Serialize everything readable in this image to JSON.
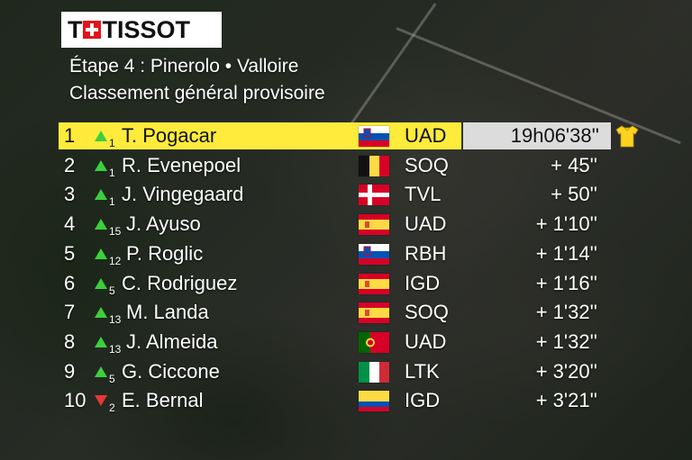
{
  "brand": {
    "logo_initial": "T",
    "logo_word": "TISSOT"
  },
  "header": {
    "stage": "Étape 4 : Pinerolo •  Valloire",
    "subtitle": "Classement général provisoire"
  },
  "colors": {
    "leader_bar": "#ffeb3b",
    "time_bar": "#dcdcdc",
    "up_arrow": "#3ccf3c",
    "down_arrow": "#e53935"
  },
  "standings": [
    {
      "rank": "1",
      "move": "up",
      "delta": "1",
      "rider": "T. Pogacar",
      "flag": "slovenia-flag",
      "team": "UAD",
      "time": "19h06'38''",
      "leader": true,
      "jersey": "yellow-jersey-icon"
    },
    {
      "rank": "2",
      "move": "up",
      "delta": "1",
      "rider": "R. Evenepoel",
      "flag": "belgium-flag",
      "team": "SOQ",
      "time": "+ 45''"
    },
    {
      "rank": "3",
      "move": "up",
      "delta": "1",
      "rider": "J. Vingegaard",
      "flag": "denmark-flag",
      "team": "TVL",
      "time": "+ 50''"
    },
    {
      "rank": "4",
      "move": "up",
      "delta": "15",
      "rider": "J. Ayuso",
      "flag": "spain-flag",
      "team": "UAD",
      "time": "+ 1'10''"
    },
    {
      "rank": "5",
      "move": "up",
      "delta": "12",
      "rider": "P. Roglic",
      "flag": "slovenia-flag",
      "team": "RBH",
      "time": "+ 1'14''"
    },
    {
      "rank": "6",
      "move": "up",
      "delta": "5",
      "rider": "C. Rodriguez",
      "flag": "spain-flag",
      "team": "IGD",
      "time": "+ 1'16''"
    },
    {
      "rank": "7",
      "move": "up",
      "delta": "13",
      "rider": "M. Landa",
      "flag": "spain-flag",
      "team": "SOQ",
      "time": "+ 1'32''"
    },
    {
      "rank": "8",
      "move": "up",
      "delta": "13",
      "rider": "J. Almeida",
      "flag": "portugal-flag",
      "team": "UAD",
      "time": "+ 1'32''"
    },
    {
      "rank": "9",
      "move": "up",
      "delta": "5",
      "rider": "G. Ciccone",
      "flag": "italy-flag",
      "team": "LTK",
      "time": "+ 3'20''"
    },
    {
      "rank": "10",
      "move": "down",
      "delta": "2",
      "rider": "E. Bernal",
      "flag": "colombia-flag",
      "team": "IGD",
      "time": "+ 3'21''"
    }
  ]
}
